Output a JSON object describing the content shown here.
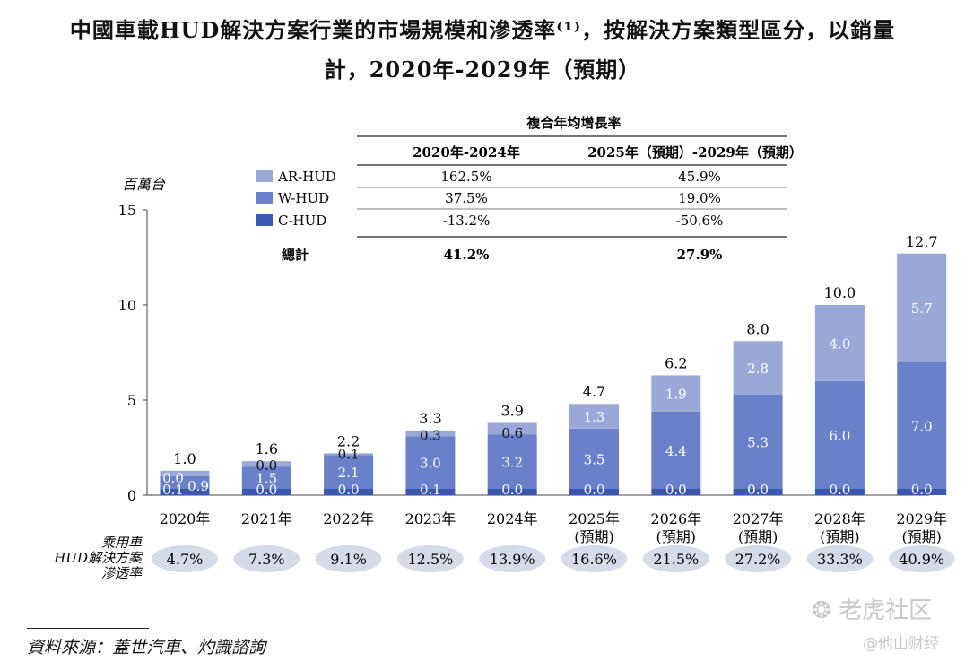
{
  "title_line1": "中國車載HUD解決方案行業的市場規模和滲透率⁽¹⁾，按解決方案類型區分，以銷量",
  "title_line2": "計，2020年-2029年（預期）",
  "source": "資料來源：蓋世汽車、灼識諮詢",
  "watermark_main": "老虎社区",
  "watermark_sub": "@他山财经",
  "colors": {
    "ar": "#9aa8d8",
    "w": "#6a80c8",
    "c": "#3a58b0",
    "pen_oval": "#d5dbe8"
  },
  "cagr_table": {
    "header": "複合年均增長率",
    "col1": "2020年-2024年",
    "col2": "2025年（預期）-2029年（預期）",
    "rows": [
      {
        "label": "AR-HUD",
        "v1": "162.5%",
        "v2": "45.9%",
        "swatch": "ar"
      },
      {
        "label": "W-HUD",
        "v1": "37.5%",
        "v2": "19.0%",
        "swatch": "w"
      },
      {
        "label": "C-HUD",
        "v1": "-13.2%",
        "v2": "-50.6%",
        "swatch": "c"
      }
    ],
    "total": {
      "label": "總計",
      "v1": "41.2%",
      "v2": "27.9%"
    }
  },
  "chart_data": {
    "type": "bar",
    "stacked": true,
    "ylabel": "百萬台",
    "ylim": [
      0,
      15
    ],
    "yticks": [
      0,
      5,
      10,
      15
    ],
    "categories": [
      [
        "2020年"
      ],
      [
        "2021年"
      ],
      [
        "2022年"
      ],
      [
        "2023年"
      ],
      [
        "2024年"
      ],
      [
        "2025年",
        "(預期)"
      ],
      [
        "2026年",
        "(預期)"
      ],
      [
        "2027年",
        "(預期)"
      ],
      [
        "2028年",
        "(預期)"
      ],
      [
        "2029年",
        "(預期)"
      ]
    ],
    "series": [
      {
        "name": "C-HUD",
        "key": "c",
        "values": [
          0.1,
          0.0,
          0.0,
          0.1,
          0.0,
          0.0,
          0.0,
          0.0,
          0.0,
          0.0
        ]
      },
      {
        "name": "W-HUD",
        "key": "w",
        "values": [
          0.9,
          1.5,
          2.1,
          3.0,
          3.2,
          3.5,
          4.4,
          5.3,
          6.0,
          7.0
        ]
      },
      {
        "name": "AR-HUD",
        "key": "ar",
        "values": [
          0.0,
          0.0,
          0.1,
          0.3,
          0.6,
          1.3,
          1.9,
          2.8,
          4.0,
          5.7
        ]
      }
    ],
    "totals": [
      "1.0",
      "1.6",
      "2.2",
      "3.3",
      "3.9",
      "4.7",
      "6.2",
      "8.0",
      "10.0",
      "12.7"
    ],
    "penetration_label": [
      "乘用車",
      "HUD解決方案",
      "滲透率"
    ],
    "penetration": [
      "4.7%",
      "7.3%",
      "9.1%",
      "12.5%",
      "13.9%",
      "16.6%",
      "21.5%",
      "27.2%",
      "33.3%",
      "40.9%"
    ]
  }
}
